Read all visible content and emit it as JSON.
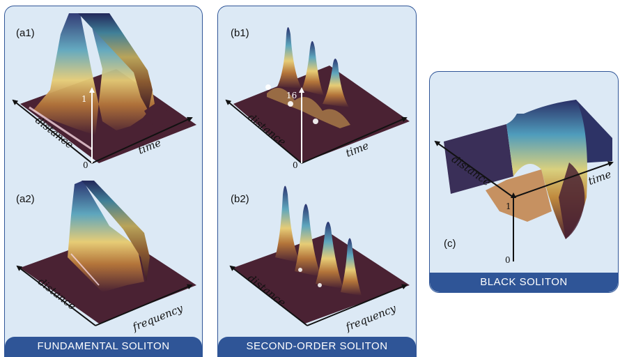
{
  "panels": {
    "fundamental": {
      "banner": "FUNDAMENTAL   SOLITON",
      "a1": {
        "label": "(a1)",
        "axis_distance": "distance",
        "axis_time": "time",
        "tick_top": "1",
        "tick_origin": "0"
      },
      "a2": {
        "label": "(a2)",
        "axis_distance": "distance",
        "axis_frequency": "frequency"
      }
    },
    "second_order": {
      "banner": "SECOND-ORDER   SOLITON",
      "b1": {
        "label": "(b1)",
        "axis_distance": "distance",
        "axis_time": "time",
        "tick_top": "16",
        "tick_origin": "0"
      },
      "b2": {
        "label": "(b2)",
        "axis_distance": "distance",
        "axis_frequency": "frequency"
      }
    },
    "black": {
      "banner": "BLACK   SOLITON",
      "c": {
        "label": "(c)",
        "axis_distance": "distance",
        "axis_time": "time",
        "tick_top": "1",
        "tick_origin": "0"
      }
    }
  },
  "colors": {
    "panel_bg": "#dce9f5",
    "panel_border": "#2f5597",
    "banner_bg": "#2f5597",
    "surface_base": "#4a2233",
    "surface_gradient": [
      "#4a2233",
      "#c98a3a",
      "#e8d27a",
      "#5aa7c0",
      "#2b3a78"
    ]
  }
}
